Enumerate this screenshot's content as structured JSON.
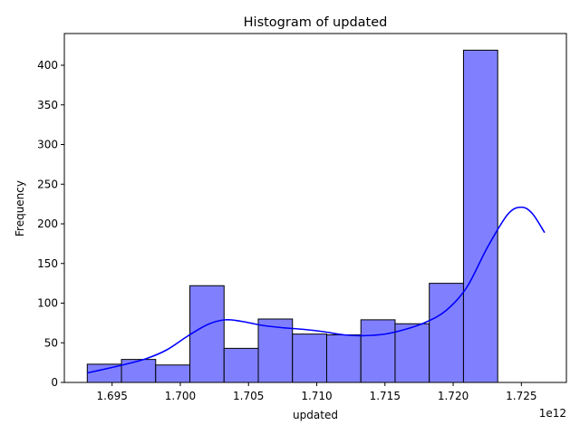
{
  "chart_data": {
    "type": "bar",
    "title": "Histogram of updated",
    "xlabel": "updated",
    "ylabel": "Frequency",
    "x_offset_label": "1e12",
    "xlim": [
      1.6915,
      1.7283
    ],
    "ylim": [
      0,
      440
    ],
    "x_ticks": [
      1.695,
      1.7,
      1.705,
      1.71,
      1.715,
      1.72,
      1.725
    ],
    "x_tick_labels": [
      "1.695",
      "1.700",
      "1.705",
      "1.710",
      "1.715",
      "1.720",
      "1.725"
    ],
    "y_ticks": [
      0,
      50,
      100,
      150,
      200,
      250,
      300,
      350,
      400
    ],
    "y_tick_labels": [
      "0",
      "50",
      "100",
      "150",
      "200",
      "250",
      "300",
      "350",
      "400"
    ],
    "bin_start": 1.69318,
    "bin_width": 0.002507,
    "values": [
      23,
      29,
      22,
      122,
      43,
      80,
      61,
      60,
      79,
      74,
      125,
      419
    ],
    "kde": {
      "name": "KDE",
      "x": [
        1.69318,
        1.6945,
        1.696,
        1.6975,
        1.699,
        1.7005,
        1.702,
        1.7033,
        1.7045,
        1.706,
        1.7075,
        1.709,
        1.7105,
        1.712,
        1.7135,
        1.715,
        1.7165,
        1.718,
        1.7195,
        1.721,
        1.7225,
        1.724,
        1.725,
        1.7258,
        1.7267
      ],
      "y": [
        12,
        17,
        23,
        30,
        41,
        58,
        73,
        79,
        77,
        72,
        69,
        67,
        64,
        60,
        59,
        61,
        67,
        76,
        91,
        120,
        170,
        212,
        221,
        213,
        189
      ]
    },
    "colors": {
      "bar_fill": "#8080ff",
      "bar_edge": "#000000",
      "kde_line": "#0000ff"
    }
  }
}
